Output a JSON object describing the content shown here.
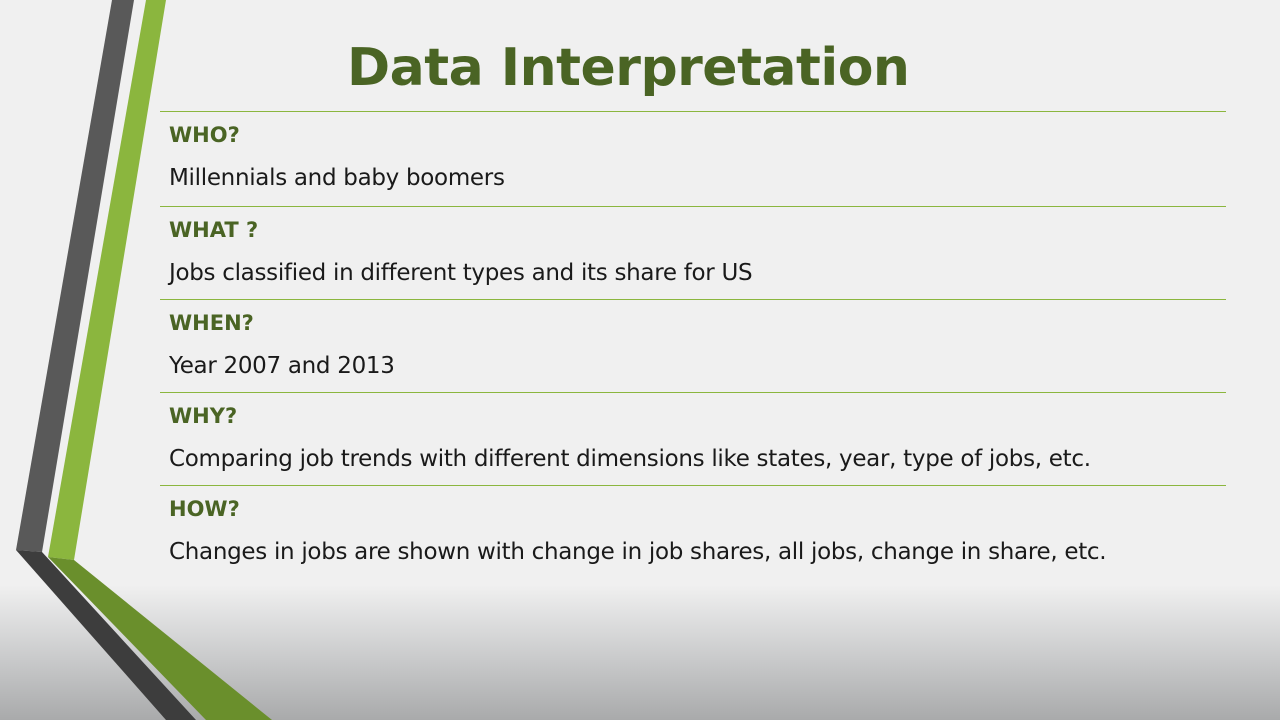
{
  "slide": {
    "title": "Data Interpretation",
    "theme_colors": {
      "accent_green": "#8bb63e",
      "title_green": "#4a6424",
      "dark_gray": "#595959"
    },
    "rows": [
      {
        "label": "WHO?",
        "value": "Millennials and baby boomers"
      },
      {
        "label": "WHAT ?",
        "value": "Jobs classified in different types and its share for US"
      },
      {
        "label": "WHEN?",
        "value": "Year 2007 and 2013"
      },
      {
        "label": "WHY?",
        "value": "Comparing job trends with different dimensions like states, year, type of jobs, etc."
      },
      {
        "label": "HOW?",
        "value": "Changes in jobs are shown with change in job shares, all jobs, change in share, etc."
      }
    ]
  }
}
